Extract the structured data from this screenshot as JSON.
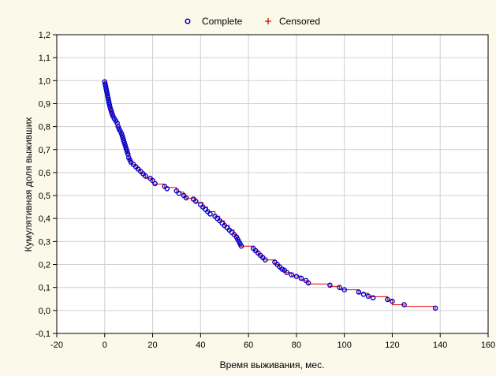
{
  "chart_data": {
    "type": "scatter",
    "title": "",
    "xlabel": "Время выживания, мес.",
    "ylabel": "Кумулятивная доля выживших",
    "xlim": [
      -20,
      160
    ],
    "ylim": [
      -0.1,
      1.2
    ],
    "xticks": [
      "-20",
      "0",
      "20",
      "40",
      "60",
      "80",
      "100",
      "120",
      "140",
      "160"
    ],
    "yticks": [
      "-0,1",
      "0,0",
      "0,1",
      "0,2",
      "0,3",
      "0,4",
      "0,5",
      "0,6",
      "0,7",
      "0,8",
      "0,9",
      "1,0",
      "1,1",
      "1,2"
    ],
    "grid": true,
    "legend_position": "top-center",
    "colors": {
      "complete": "#0000cc",
      "censored": "#e60000",
      "step_line": "#e60000",
      "background": "#fbf9e9",
      "plot_bg": "#ffffff",
      "grid": "#d0d0d0"
    },
    "series": [
      {
        "name": "Complete",
        "marker": "circle",
        "points": [
          [
            0,
            0.995
          ],
          [
            0.2,
            0.985
          ],
          [
            0.4,
            0.975
          ],
          [
            0.6,
            0.965
          ],
          [
            0.8,
            0.955
          ],
          [
            1,
            0.945
          ],
          [
            1.2,
            0.935
          ],
          [
            1.4,
            0.925
          ],
          [
            1.6,
            0.915
          ],
          [
            1.8,
            0.905
          ],
          [
            2,
            0.895
          ],
          [
            2.2,
            0.885
          ],
          [
            2.5,
            0.875
          ],
          [
            2.8,
            0.865
          ],
          [
            3.1,
            0.855
          ],
          [
            3.5,
            0.845
          ],
          [
            4,
            0.835
          ],
          [
            4.6,
            0.825
          ],
          [
            5.2,
            0.815
          ],
          [
            5.6,
            0.8
          ],
          [
            6,
            0.79
          ],
          [
            6.5,
            0.78
          ],
          [
            7,
            0.77
          ],
          [
            7.3,
            0.76
          ],
          [
            7.6,
            0.75
          ],
          [
            7.9,
            0.74
          ],
          [
            8.2,
            0.73
          ],
          [
            8.5,
            0.72
          ],
          [
            8.8,
            0.71
          ],
          [
            9.1,
            0.7
          ],
          [
            9.4,
            0.69
          ],
          [
            9.7,
            0.68
          ],
          [
            10,
            0.665
          ],
          [
            10.5,
            0.655
          ],
          [
            11,
            0.645
          ],
          [
            12,
            0.635
          ],
          [
            13,
            0.625
          ],
          [
            14,
            0.615
          ],
          [
            15,
            0.605
          ],
          [
            16,
            0.595
          ],
          [
            17,
            0.585
          ],
          [
            19,
            0.575
          ],
          [
            20,
            0.565
          ],
          [
            21,
            0.552
          ],
          [
            25,
            0.54
          ],
          [
            26,
            0.53
          ],
          [
            30,
            0.52
          ],
          [
            31,
            0.51
          ],
          [
            33,
            0.5
          ],
          [
            34,
            0.49
          ],
          [
            37,
            0.485
          ],
          [
            38,
            0.475
          ],
          [
            40,
            0.46
          ],
          [
            41,
            0.45
          ],
          [
            42,
            0.44
          ],
          [
            43,
            0.43
          ],
          [
            44,
            0.42
          ],
          [
            46,
            0.41
          ],
          [
            47,
            0.4
          ],
          [
            48,
            0.39
          ],
          [
            49,
            0.38
          ],
          [
            50,
            0.37
          ],
          [
            51,
            0.36
          ],
          [
            52,
            0.35
          ],
          [
            53,
            0.34
          ],
          [
            54,
            0.33
          ],
          [
            55,
            0.32
          ],
          [
            55.5,
            0.31
          ],
          [
            56,
            0.3
          ],
          [
            56.5,
            0.29
          ],
          [
            57,
            0.28
          ],
          [
            62,
            0.27
          ],
          [
            63,
            0.26
          ],
          [
            64,
            0.25
          ],
          [
            65,
            0.24
          ],
          [
            66,
            0.23
          ],
          [
            67,
            0.22
          ],
          [
            71,
            0.21
          ],
          [
            72,
            0.2
          ],
          [
            73,
            0.19
          ],
          [
            74,
            0.18
          ],
          [
            75,
            0.175
          ],
          [
            76,
            0.165
          ],
          [
            78,
            0.155
          ],
          [
            80,
            0.148
          ],
          [
            82,
            0.14
          ],
          [
            84,
            0.13
          ],
          [
            85,
            0.12
          ],
          [
            94,
            0.11
          ],
          [
            98,
            0.1
          ],
          [
            100,
            0.09
          ],
          [
            106,
            0.08
          ],
          [
            108,
            0.07
          ],
          [
            110,
            0.062
          ],
          [
            112,
            0.055
          ],
          [
            118,
            0.048
          ],
          [
            120,
            0.04
          ],
          [
            125,
            0.025
          ],
          [
            138,
            0.01
          ]
        ]
      },
      {
        "name": "Censored",
        "marker": "plus",
        "points": []
      }
    ],
    "step_line": [
      [
        0,
        1.0
      ],
      [
        0,
        0.985
      ],
      [
        0.4,
        0.985
      ],
      [
        0.4,
        0.965
      ],
      [
        0.8,
        0.965
      ],
      [
        0.8,
        0.945
      ],
      [
        1.2,
        0.945
      ],
      [
        1.2,
        0.925
      ],
      [
        1.6,
        0.925
      ],
      [
        1.6,
        0.905
      ],
      [
        2,
        0.905
      ],
      [
        2,
        0.885
      ],
      [
        2.5,
        0.885
      ],
      [
        2.5,
        0.865
      ],
      [
        3.1,
        0.865
      ],
      [
        3.1,
        0.845
      ],
      [
        4,
        0.845
      ],
      [
        4,
        0.825
      ],
      [
        5.2,
        0.825
      ],
      [
        5.2,
        0.8
      ],
      [
        6,
        0.8
      ],
      [
        6,
        0.78
      ],
      [
        7,
        0.78
      ],
      [
        7,
        0.76
      ],
      [
        7.6,
        0.76
      ],
      [
        7.6,
        0.74
      ],
      [
        8.2,
        0.74
      ],
      [
        8.2,
        0.72
      ],
      [
        8.8,
        0.72
      ],
      [
        8.8,
        0.7
      ],
      [
        9.4,
        0.7
      ],
      [
        9.4,
        0.68
      ],
      [
        10,
        0.68
      ],
      [
        10,
        0.655
      ],
      [
        11,
        0.655
      ],
      [
        11,
        0.635
      ],
      [
        13,
        0.635
      ],
      [
        13,
        0.615
      ],
      [
        15,
        0.615
      ],
      [
        15,
        0.595
      ],
      [
        17,
        0.595
      ],
      [
        17,
        0.575
      ],
      [
        20,
        0.575
      ],
      [
        20,
        0.55
      ],
      [
        25,
        0.55
      ],
      [
        25,
        0.535
      ],
      [
        30,
        0.535
      ],
      [
        30,
        0.515
      ],
      [
        33,
        0.515
      ],
      [
        33,
        0.495
      ],
      [
        34,
        0.495
      ],
      [
        34,
        0.488
      ],
      [
        38,
        0.488
      ],
      [
        38,
        0.47
      ],
      [
        41,
        0.47
      ],
      [
        41,
        0.45
      ],
      [
        43,
        0.45
      ],
      [
        43,
        0.43
      ],
      [
        46,
        0.43
      ],
      [
        46,
        0.41
      ],
      [
        48,
        0.41
      ],
      [
        48,
        0.39
      ],
      [
        50,
        0.39
      ],
      [
        50,
        0.37
      ],
      [
        52,
        0.37
      ],
      [
        52,
        0.35
      ],
      [
        54,
        0.35
      ],
      [
        54,
        0.33
      ],
      [
        55,
        0.33
      ],
      [
        55,
        0.31
      ],
      [
        56,
        0.31
      ],
      [
        56,
        0.28
      ],
      [
        62,
        0.28
      ],
      [
        62,
        0.26
      ],
      [
        64,
        0.26
      ],
      [
        64,
        0.24
      ],
      [
        66,
        0.24
      ],
      [
        66,
        0.22
      ],
      [
        71,
        0.22
      ],
      [
        71,
        0.2
      ],
      [
        73,
        0.2
      ],
      [
        73,
        0.18
      ],
      [
        75,
        0.18
      ],
      [
        75,
        0.165
      ],
      [
        78,
        0.165
      ],
      [
        78,
        0.15
      ],
      [
        82,
        0.15
      ],
      [
        82,
        0.13
      ],
      [
        85,
        0.13
      ],
      [
        85,
        0.115
      ],
      [
        94,
        0.115
      ],
      [
        94,
        0.105
      ],
      [
        98,
        0.105
      ],
      [
        98,
        0.09
      ],
      [
        106,
        0.09
      ],
      [
        106,
        0.075
      ],
      [
        110,
        0.075
      ],
      [
        110,
        0.06
      ],
      [
        118,
        0.06
      ],
      [
        118,
        0.045
      ],
      [
        120,
        0.045
      ],
      [
        120,
        0.025
      ],
      [
        125,
        0.025
      ],
      [
        125,
        0.018
      ],
      [
        138,
        0.018
      ],
      [
        138,
        0.005
      ]
    ]
  }
}
